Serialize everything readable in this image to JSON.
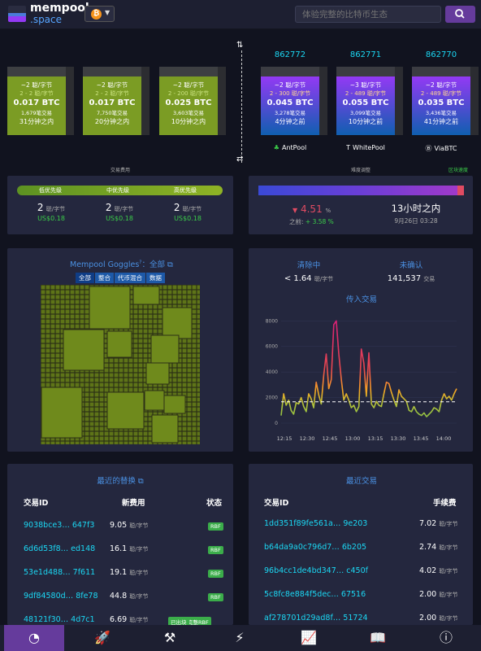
{
  "header": {
    "logo_line1": "mempool",
    "logo_line2": ".space",
    "network_coin": "₿",
    "search_placeholder": "体验完整的比特币生态"
  },
  "mempool_blocks": [
    {
      "fee_range_median": "~2 聪/字节",
      "fee_range": "2 - 2 聪/字节",
      "size": "0.017 BTC",
      "tx_count": "1,679笔交易",
      "eta": "31分钟之内"
    },
    {
      "fee_range_median": "~2 聪/字节",
      "fee_range": "2 - 2 聪/字节",
      "size": "0.017 BTC",
      "tx_count": "7,750笔交易",
      "eta": "20分钟之内"
    },
    {
      "fee_range_median": "~2 聪/字节",
      "fee_range": "2 - 200 聪/字节",
      "size": "0.025 BTC",
      "tx_count": "3,603笔交易",
      "eta": "10分钟之内"
    }
  ],
  "mined_blocks": [
    {
      "height": "862772",
      "fee_range_median": "~2 聪/字节",
      "fee_range": "2 - 300 聪/字节",
      "size": "0.045 BTC",
      "tx_count": "3,278笔交易",
      "time": "4分钟之前",
      "pool": "AntPool",
      "pool_icon": "ant"
    },
    {
      "height": "862771",
      "fee_range_median": "~3 聪/字节",
      "fee_range": "2 - 489 聪/字节",
      "size": "0.055 BTC",
      "tx_count": "3,099笔交易",
      "time": "10分钟之前",
      "pool": "WhitePool",
      "pool_icon": "T"
    },
    {
      "height": "862770",
      "fee_range_median": "~2 聪/字节",
      "fee_range": "2 - 489 聪/字节",
      "size": "0.035 BTC",
      "tx_count": "3,436笔交易",
      "time": "41分钟之前",
      "pool": "ViaBTC",
      "pool_icon": "Ⓑ"
    }
  ],
  "labels_small": {
    "fees_title": "交易费用",
    "difficulty_title": "难度调整",
    "speed": "区块速度"
  },
  "fees": {
    "low_label": "低优先级",
    "mid_label": "中优先级",
    "high_label": "高优先级",
    "low": "2",
    "mid": "2",
    "high": "2",
    "unit": "聪/字节",
    "low_usd": "US$0.18",
    "mid_usd": "US$0.18",
    "high_usd": "US$0.18"
  },
  "difficulty": {
    "change": "4.51",
    "change_unit": "%",
    "previous_label": "之前:",
    "previous": "+ 3.58 %",
    "eta": "13小时之内",
    "date": "9月26日 03:28"
  },
  "goggles": {
    "title": "Mempool Goggles",
    "filter_suffix": "：全部",
    "pills": [
      "全部",
      "整合",
      "代币混合",
      "数据"
    ]
  },
  "mempool_stats": {
    "clearing_label": "清除中",
    "clearing_value": "< 1.64",
    "clearing_unit": "聪/字节",
    "unconfirmed_label": "未确认",
    "unconfirmed_value": "141,537",
    "unconfirmed_unit": "交易",
    "incoming_title": "传入交易"
  },
  "chart_data": {
    "type": "line",
    "title": "传入交易",
    "x_ticks": [
      "12:15",
      "12:30",
      "12:45",
      "13:00",
      "13:15",
      "13:30",
      "13:45",
      "14:00"
    ],
    "y_ticks": [
      "0",
      "2000",
      "4000",
      "6000",
      "8000"
    ],
    "ylim": [
      0,
      8400
    ],
    "reference_line": 1667,
    "x": [
      0,
      2,
      4,
      6,
      8,
      10,
      12,
      14,
      16,
      18,
      20,
      22,
      24,
      26,
      28,
      30,
      32,
      34,
      36,
      38,
      40,
      42,
      44,
      46,
      48,
      50,
      52,
      54,
      56,
      58,
      60,
      62,
      64,
      66,
      68,
      70,
      72,
      74,
      76,
      78,
      80,
      82,
      84,
      86,
      88,
      90,
      92,
      94,
      96,
      98,
      100,
      102,
      104,
      106,
      108,
      110,
      112,
      114,
      116,
      118,
      120,
      122,
      124,
      126,
      128,
      130,
      132,
      134,
      136,
      138,
      140
    ],
    "values": [
      600,
      2300,
      1400,
      1800,
      1000,
      700,
      1600,
      1500,
      2000,
      1300,
      900,
      2300,
      1900,
      1200,
      3200,
      2200,
      1500,
      3800,
      5400,
      2700,
      3400,
      7700,
      8000,
      5400,
      3400,
      1800,
      2300,
      1800,
      1200,
      1400,
      900,
      1300,
      5800,
      4700,
      2100,
      5500,
      1500,
      1200,
      1700,
      1400,
      1300,
      2300,
      3200,
      3100,
      2400,
      1800,
      1300,
      2600,
      2100,
      1900,
      1700,
      1000,
      900,
      1300,
      900,
      700,
      600,
      800,
      500,
      700,
      900,
      1200,
      1100,
      900,
      1800,
      2300,
      1900,
      2100,
      1800,
      2300,
      2700
    ]
  },
  "replacements": {
    "title": "最近的替换",
    "col_txid": "交易ID",
    "col_fee": "新费用",
    "col_status": "状态",
    "unit": "聪/字节",
    "rows": [
      {
        "txid": "9038bce3… 647f3",
        "fee": "9.05",
        "badges": [
          "RBF"
        ]
      },
      {
        "txid": "6d6d53f8… ed148",
        "fee": "16.1",
        "badges": [
          "RBF"
        ]
      },
      {
        "txid": "53e1d488… 7f611",
        "fee": "19.1",
        "badges": [
          "RBF"
        ]
      },
      {
        "txid": "9df84580d… 8fe78",
        "fee": "44.8",
        "badges": [
          "RBF"
        ]
      },
      {
        "txid": "48121f30… 4d7c1",
        "fee": "6.69",
        "badges": [
          "已出块",
          "完整RBF"
        ]
      }
    ]
  },
  "recent_tx": {
    "title": "最近交易",
    "col_txid": "交易ID",
    "col_fee": "手续费",
    "unit": "聪/字节",
    "rows": [
      {
        "txid": "1dd351f89fe561a… 9e203",
        "fee": "7.02"
      },
      {
        "txid": "b64da9a0c796d7… 6b205",
        "fee": "2.74"
      },
      {
        "txid": "96b4cc1de4bd347… c450f",
        "fee": "4.02"
      },
      {
        "txid": "5c8fc8e884f5dec… 67516",
        "fee": "2.00"
      },
      {
        "txid": "af278701d29ad8f… 51724",
        "fee": "2.00"
      }
    ]
  },
  "colors": {
    "accent": "#653b9c",
    "link": "#1bd8f4",
    "green": "#3bcc49",
    "card": "#24273e"
  }
}
